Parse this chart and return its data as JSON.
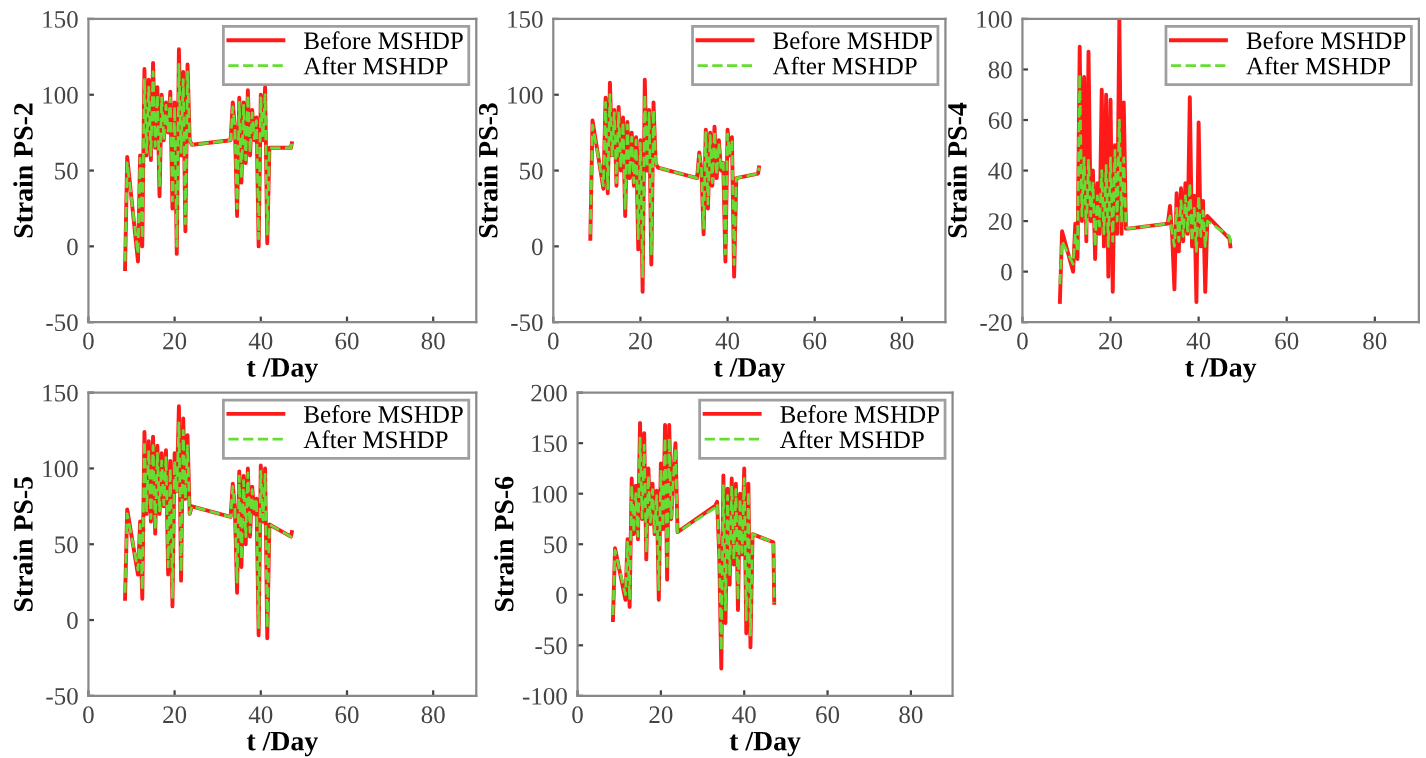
{
  "chart_data": [
    {
      "type": "line",
      "ylabel": "Strain PS-2",
      "xlabel": "t /Day",
      "xlim": [
        0,
        90
      ],
      "xticks": [
        0,
        20,
        40,
        60,
        80
      ],
      "ylim": [
        -50,
        150
      ],
      "yticks": [
        -50,
        0,
        50,
        100,
        150
      ],
      "grid": false,
      "legend": "top right",
      "x": [
        8.5,
        9,
        11.5,
        12,
        12.5,
        13,
        13.5,
        14,
        14.5,
        15,
        15.5,
        16,
        16.5,
        17,
        17.5,
        18,
        18.5,
        19,
        19.5,
        20,
        20.5,
        21,
        21.5,
        22,
        22.5,
        23,
        23.5,
        24,
        33,
        33.5,
        34,
        34.5,
        35,
        35.5,
        36,
        36.5,
        37,
        37.5,
        38,
        38.5,
        39,
        39.5,
        40,
        40.5,
        41,
        41.5,
        42,
        47,
        47.2
      ],
      "series": [
        {
          "name": "Before MSHDP",
          "color": "#ff1a1a",
          "line_style": "solid",
          "values": [
            -15,
            59,
            -10,
            60,
            0,
            117,
            60,
            110,
            57,
            121,
            65,
            105,
            33,
            100,
            70,
            95,
            75,
            102,
            25,
            95,
            -5,
            130,
            60,
            115,
            10,
            120,
            70,
            67,
            70,
            95,
            78,
            20,
            98,
            42,
            95,
            55,
            103,
            60,
            90,
            70,
            85,
            0,
            100,
            70,
            105,
            2,
            65,
            65,
            68
          ]
        },
        {
          "name": "After MSHDP",
          "color": "#66dd33",
          "line_style": "dashed",
          "values": [
            -10,
            55,
            -5,
            58,
            5,
            110,
            62,
            105,
            60,
            115,
            66,
            100,
            40,
            98,
            70,
            93,
            76,
            98,
            30,
            92,
            0,
            120,
            62,
            110,
            15,
            115,
            70,
            67,
            70,
            92,
            78,
            25,
            95,
            45,
            93,
            57,
            100,
            62,
            88,
            71,
            83,
            5,
            98,
            72,
            100,
            8,
            65,
            65,
            68
          ]
        }
      ]
    },
    {
      "type": "line",
      "ylabel": "Strain PS-3",
      "xlabel": "t /Day",
      "xlim": [
        0,
        90
      ],
      "xticks": [
        0,
        20,
        40,
        60,
        80
      ],
      "ylim": [
        -50,
        150
      ],
      "yticks": [
        -50,
        0,
        50,
        100,
        150
      ],
      "grid": false,
      "legend": "top right",
      "x": [
        8.5,
        9,
        11.5,
        12,
        12.5,
        13,
        13.5,
        14,
        14.5,
        15,
        15.5,
        16,
        16.5,
        17,
        17.5,
        18,
        18.5,
        19,
        19.5,
        20,
        20.5,
        21,
        21.5,
        22,
        22.5,
        23,
        23.5,
        24,
        33,
        33.5,
        34,
        34.5,
        35,
        35.5,
        36,
        36.5,
        37,
        37.5,
        38,
        38.5,
        39,
        39.5,
        40,
        40.5,
        41,
        41.5,
        42,
        47,
        47.2
      ],
      "series": [
        {
          "name": "Before MSHDP",
          "color": "#ff1a1a",
          "line_style": "solid",
          "values": [
            5,
            83,
            38,
            98,
            35,
            108,
            60,
            90,
            40,
            92,
            50,
            85,
            20,
            82,
            45,
            75,
            40,
            72,
            -2,
            70,
            -30,
            110,
            50,
            90,
            -12,
            95,
            55,
            52,
            45,
            62,
            50,
            8,
            77,
            25,
            75,
            40,
            79,
            45,
            70,
            50,
            55,
            -10,
            77,
            60,
            72,
            -20,
            45,
            48,
            52
          ]
        },
        {
          "name": "After MSHDP",
          "color": "#66dd33",
          "line_style": "dashed",
          "values": [
            8,
            80,
            40,
            95,
            38,
            100,
            60,
            88,
            42,
            88,
            52,
            82,
            25,
            80,
            47,
            72,
            42,
            70,
            5,
            68,
            -20,
            100,
            52,
            88,
            -5,
            90,
            55,
            52,
            45,
            60,
            51,
            12,
            75,
            28,
            73,
            42,
            76,
            47,
            68,
            51,
            55,
            -5,
            74,
            60,
            70,
            -12,
            45,
            48,
            52
          ]
        }
      ]
    },
    {
      "type": "line",
      "ylabel": "Strain PS-4",
      "xlabel": "t /Day",
      "xlim": [
        0,
        90
      ],
      "xticks": [
        0,
        20,
        40,
        60,
        80
      ],
      "ylim": [
        -20,
        100
      ],
      "yticks": [
        -20,
        0,
        20,
        40,
        60,
        80,
        100
      ],
      "grid": false,
      "legend": "top right",
      "x": [
        8.5,
        9,
        11.5,
        12,
        12.5,
        13,
        13.5,
        14,
        14.5,
        15,
        15.5,
        16,
        16.5,
        17,
        17.5,
        18,
        18.5,
        19,
        19.5,
        20,
        20.5,
        21,
        21.5,
        22,
        22.5,
        23,
        23.5,
        24,
        33,
        33.5,
        34,
        34.5,
        35,
        35.5,
        36,
        36.5,
        37,
        37.5,
        38,
        38.5,
        39,
        39.5,
        40,
        40.5,
        41,
        41.5,
        42,
        47,
        47.2
      ],
      "series": [
        {
          "name": "Before MSHDP",
          "color": "#ff1a1a",
          "line_style": "solid",
          "values": [
            -12,
            16,
            0,
            19,
            5,
            89,
            20,
            77,
            12,
            87,
            20,
            40,
            5,
            35,
            15,
            72,
            10,
            70,
            -2,
            68,
            -8,
            50,
            15,
            100,
            15,
            67,
            17,
            17,
            19,
            26,
            14,
            -7,
            31,
            8,
            33,
            12,
            35,
            15,
            69,
            10,
            30,
            -12,
            59,
            10,
            28,
            -8,
            22,
            13,
            10
          ]
        },
        {
          "name": "After MSHDP",
          "color": "#66dd33",
          "line_style": "dashed",
          "values": [
            -5,
            12,
            3,
            15,
            8,
            78,
            22,
            45,
            15,
            44,
            22,
            35,
            10,
            30,
            18,
            40,
            15,
            42,
            10,
            45,
            12,
            48,
            20,
            60,
            20,
            45,
            18,
            17,
            19,
            22,
            15,
            10,
            25,
            12,
            28,
            14,
            30,
            16,
            35,
            12,
            25,
            8,
            30,
            14,
            24,
            10,
            20,
            14,
            11
          ]
        }
      ]
    },
    {
      "type": "line",
      "ylabel": "Strain PS-5",
      "xlabel": "t /Day",
      "xlim": [
        0,
        90
      ],
      "xticks": [
        0,
        20,
        40,
        60,
        80
      ],
      "ylim": [
        -50,
        150
      ],
      "yticks": [
        -50,
        0,
        50,
        100,
        150
      ],
      "grid": false,
      "legend": "top right",
      "x": [
        8.5,
        9,
        11.5,
        12,
        12.5,
        13,
        13.5,
        14,
        14.5,
        15,
        15.5,
        16,
        16.5,
        17,
        17.5,
        18,
        18.5,
        19,
        19.5,
        20,
        20.5,
        21,
        21.5,
        22,
        22.5,
        23,
        23.5,
        24,
        33,
        33.5,
        34,
        34.5,
        35,
        35.5,
        36,
        36.5,
        37,
        37.5,
        38,
        38.5,
        39,
        39.5,
        40,
        40.5,
        41,
        41.5,
        42,
        47,
        47.2
      ],
      "series": [
        {
          "name": "Before MSHDP",
          "color": "#ff1a1a",
          "line_style": "solid",
          "values": [
            14,
            73,
            30,
            65,
            14,
            124,
            70,
            118,
            65,
            121,
            57,
            115,
            70,
            110,
            75,
            112,
            30,
            105,
            9,
            110,
            85,
            141,
            26,
            133,
            80,
            122,
            70,
            75,
            68,
            90,
            72,
            18,
            98,
            35,
            95,
            50,
            100,
            55,
            88,
            70,
            80,
            -10,
            102,
            65,
            100,
            -12,
            63,
            55,
            58
          ]
        },
        {
          "name": "After MSHDP",
          "color": "#66dd33",
          "line_style": "dashed",
          "values": [
            18,
            70,
            33,
            63,
            20,
            118,
            72,
            112,
            67,
            115,
            60,
            110,
            72,
            105,
            76,
            108,
            35,
            100,
            15,
            105,
            85,
            130,
            32,
            125,
            80,
            115,
            70,
            75,
            68,
            88,
            73,
            25,
            95,
            40,
            92,
            55,
            97,
            58,
            86,
            71,
            80,
            -5,
            98,
            66,
            96,
            -5,
            63,
            55,
            58
          ]
        }
      ]
    },
    {
      "type": "line",
      "ylabel": "Strain PS-6",
      "xlabel": "t /Day",
      "xlim": [
        0,
        90
      ],
      "xticks": [
        0,
        20,
        40,
        60,
        80
      ],
      "ylim": [
        -100,
        200
      ],
      "yticks": [
        -100,
        -50,
        0,
        50,
        100,
        150,
        200
      ],
      "grid": false,
      "legend": "top right",
      "x": [
        8.5,
        9,
        11.5,
        12,
        12.5,
        13,
        13.5,
        14,
        14.5,
        15,
        15.5,
        16,
        16.5,
        17,
        17.5,
        18,
        18.5,
        19,
        19.5,
        20,
        20.5,
        21,
        21.5,
        22,
        22.5,
        23,
        23.5,
        24,
        33,
        33.5,
        34,
        34.5,
        35,
        35.5,
        36,
        36.5,
        37,
        37.5,
        38,
        38.5,
        39,
        39.5,
        40,
        40.5,
        41,
        41.5,
        42,
        47,
        47.2
      ],
      "series": [
        {
          "name": "Before MSHDP",
          "color": "#ff1a1a",
          "line_style": "solid",
          "values": [
            -25,
            46,
            -5,
            55,
            -12,
            115,
            60,
            108,
            55,
            170,
            75,
            160,
            35,
            125,
            70,
            110,
            60,
            103,
            -5,
            130,
            65,
            168,
            15,
            168,
            75,
            120,
            150,
            62,
            88,
            92,
            40,
            -73,
            118,
            -28,
            105,
            10,
            115,
            30,
            110,
            -15,
            100,
            40,
            125,
            -38,
            110,
            -52,
            60,
            52,
            -8
          ]
        },
        {
          "name": "After MSHDP",
          "color": "#66dd33",
          "line_style": "dashed",
          "values": [
            -20,
            44,
            0,
            52,
            -5,
            108,
            62,
            100,
            58,
            155,
            76,
            148,
            42,
            118,
            72,
            104,
            62,
            98,
            5,
            122,
            67,
            155,
            25,
            155,
            76,
            115,
            145,
            62,
            86,
            90,
            45,
            -55,
            108,
            -15,
            98,
            20,
            108,
            35,
            104,
            -5,
            95,
            42,
            115,
            -25,
            102,
            -40,
            60,
            52,
            -8
          ]
        }
      ]
    }
  ]
}
